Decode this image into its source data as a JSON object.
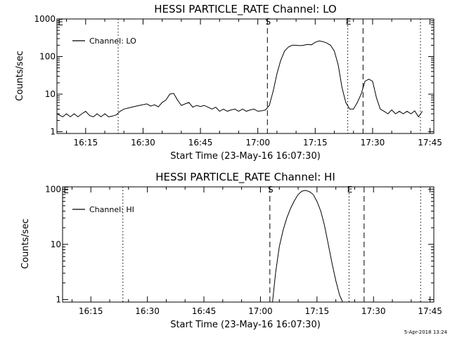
{
  "chart_data": [
    {
      "type": "line",
      "title": "HESSI PARTICLE_RATE Channel: LO",
      "xlabel": "Start Time (23-May-16 16:07:30)",
      "ylabel": "Counts/sec",
      "yscale": "log",
      "ylim": [
        0.9,
        1000
      ],
      "xlim_minutes": [
        16.13,
        17.77
      ],
      "x_tick_labels": [
        "16:15",
        "16:30",
        "16:45",
        "17:00",
        "17:15",
        "17:30",
        "17:45"
      ],
      "x_tick_values_minutes": [
        975,
        990,
        1005,
        1020,
        1035,
        1050,
        1065
      ],
      "y_tick_labels": [
        "1",
        "10",
        "100",
        "1000"
      ],
      "y_tick_values": [
        1,
        10,
        100,
        1000
      ],
      "legend": {
        "label": "Channel: LO",
        "placement": "top-left"
      },
      "markers": [
        {
          "label": "S",
          "time_min": 1022.5,
          "style": "dashed"
        },
        {
          "label": "E",
          "time_min": 1043.5,
          "style": "dotted"
        }
      ],
      "extra_lines": [
        {
          "time_min": 983.5,
          "style": "dotted"
        },
        {
          "time_min": 1047.5,
          "style": "dashed"
        },
        {
          "time_min": 1062.5,
          "style": "dotted"
        }
      ],
      "series": [
        {
          "x_minutes": [
            967.5,
            969,
            970,
            971,
            972,
            973,
            974,
            975,
            976,
            977,
            978,
            979,
            980,
            981,
            982,
            983,
            984,
            985,
            987,
            989,
            991,
            992,
            993,
            994,
            995,
            996,
            997,
            998,
            999,
            1000,
            1001,
            1002,
            1003,
            1004,
            1005,
            1006,
            1007,
            1008,
            1009,
            1010,
            1011,
            1012,
            1013,
            1014,
            1015,
            1016,
            1017,
            1018,
            1019,
            1020,
            1021,
            1022,
            1023,
            1024,
            1025,
            1026,
            1027,
            1028,
            1029,
            1030,
            1031,
            1032,
            1033,
            1034,
            1035,
            1036,
            1037,
            1038,
            1039,
            1040,
            1041,
            1042,
            1043,
            1044,
            1045,
            1046,
            1047,
            1048,
            1049,
            1050,
            1051,
            1052,
            1053,
            1054,
            1055,
            1056,
            1057,
            1058,
            1059,
            1060,
            1061,
            1062,
            1063
          ],
          "values": [
            3,
            2.5,
            3,
            2.5,
            3,
            2.5,
            3,
            3.5,
            2.7,
            2.5,
            3,
            2.5,
            3,
            2.5,
            2.6,
            2.8,
            3.5,
            4,
            4.5,
            5,
            5.5,
            4.8,
            5.2,
            4.6,
            6,
            7,
            10,
            10.5,
            7,
            5,
            5.5,
            6,
            4.5,
            5,
            4.7,
            5,
            4.5,
            4,
            4.5,
            3.5,
            4,
            3.5,
            3.8,
            4,
            3.5,
            4,
            3.5,
            3.8,
            4,
            3.5,
            3.6,
            3.8,
            5,
            12,
            35,
            80,
            140,
            180,
            200,
            200,
            195,
            200,
            210,
            205,
            240,
            260,
            250,
            230,
            200,
            140,
            60,
            15,
            6,
            4,
            4,
            6,
            10,
            22,
            25,
            22,
            8,
            4,
            3.5,
            3,
            3.8,
            3,
            3.5,
            3,
            3.5,
            3,
            3.6,
            2.5,
            3.5
          ]
        }
      ]
    },
    {
      "type": "line",
      "title": "HESSI PARTICLE_RATE Channel: HI",
      "xlabel": "Start Time (23-May-16 16:07:30)",
      "ylabel": "Counts/sec",
      "yscale": "log",
      "ylim": [
        0.9,
        110
      ],
      "x_tick_labels": [
        "16:15",
        "16:30",
        "16:45",
        "17:00",
        "17:15",
        "17:30",
        "17:45"
      ],
      "x_tick_values_minutes": [
        975,
        990,
        1005,
        1020,
        1035,
        1050,
        1065
      ],
      "y_tick_labels": [
        "1",
        "10",
        "100"
      ],
      "y_tick_values": [
        1,
        10,
        100
      ],
      "legend": {
        "label": "Channel: HI",
        "placement": "top-left"
      },
      "markers": [
        {
          "label": "S",
          "time_min": 1022.5,
          "style": "dashed"
        },
        {
          "label": "E",
          "time_min": 1043.5,
          "style": "dotted"
        }
      ],
      "extra_lines": [
        {
          "time_min": 983.5,
          "style": "dotted"
        },
        {
          "time_min": 1047.5,
          "style": "dashed"
        },
        {
          "time_min": 1062.5,
          "style": "dotted"
        }
      ],
      "series": [
        {
          "x_minutes": [
            1023.2,
            1024,
            1025,
            1026,
            1027,
            1028,
            1029,
            1030,
            1031,
            1032,
            1033,
            1034,
            1035,
            1036,
            1037,
            1038,
            1039,
            1040,
            1041,
            1041.8
          ],
          "values": [
            0.9,
            3,
            9,
            18,
            30,
            45,
            62,
            80,
            92,
            95,
            90,
            80,
            60,
            40,
            22,
            10,
            4.5,
            2.2,
            1.2,
            0.9
          ]
        }
      ]
    }
  ],
  "footer": {
    "timestamp": "5-Apr-2018 13:24"
  }
}
